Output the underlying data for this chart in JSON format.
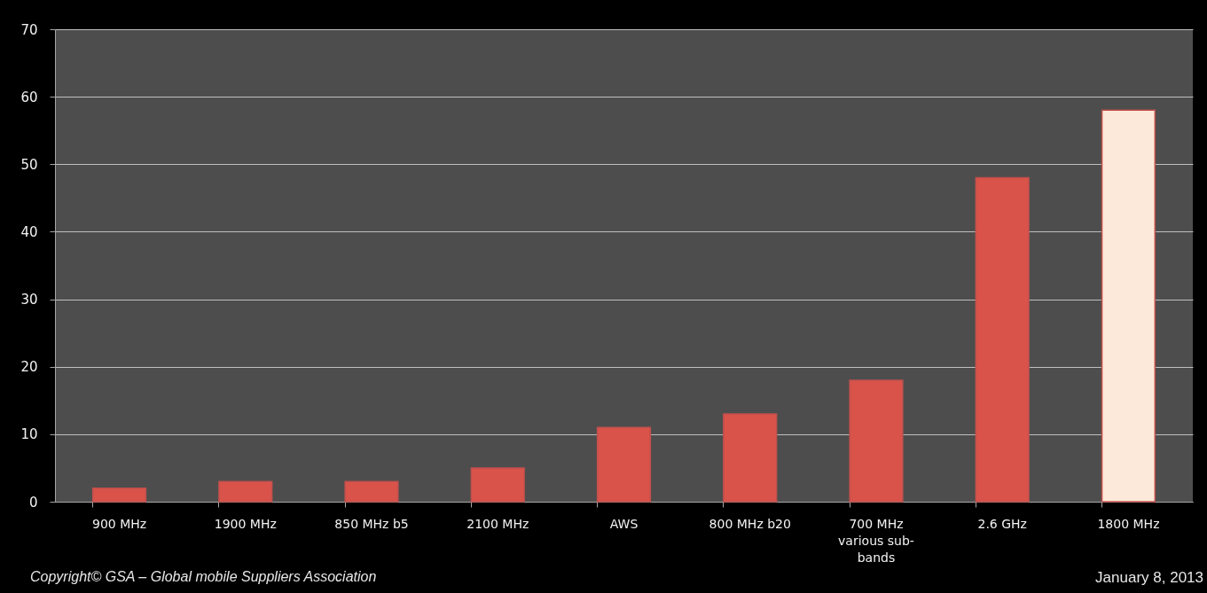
{
  "chart_data": {
    "type": "bar",
    "categories": [
      "900 MHz",
      "1900 MHz",
      "850 MHz b5",
      "2100 MHz",
      "AWS",
      "800 MHz b20",
      "700 MHz\nvarious sub-\nbands",
      "2.6 GHz",
      "1800 MHz"
    ],
    "values": [
      2,
      3,
      3,
      5,
      11,
      13,
      18,
      48,
      58
    ],
    "colors": [
      "#d9534a",
      "#d9534a",
      "#d9534a",
      "#d9534a",
      "#d9534a",
      "#d9534a",
      "#d9534a",
      "#d9534a",
      "#fde9d9"
    ],
    "ylim": [
      0,
      70
    ],
    "yticks": [
      0,
      10,
      20,
      30,
      40,
      50,
      60,
      70
    ],
    "grid": "y",
    "legend": false,
    "annotations": [
      "Copyright© GSA – Global mobile Suppliers Association",
      "January 8, 2013"
    ]
  }
}
